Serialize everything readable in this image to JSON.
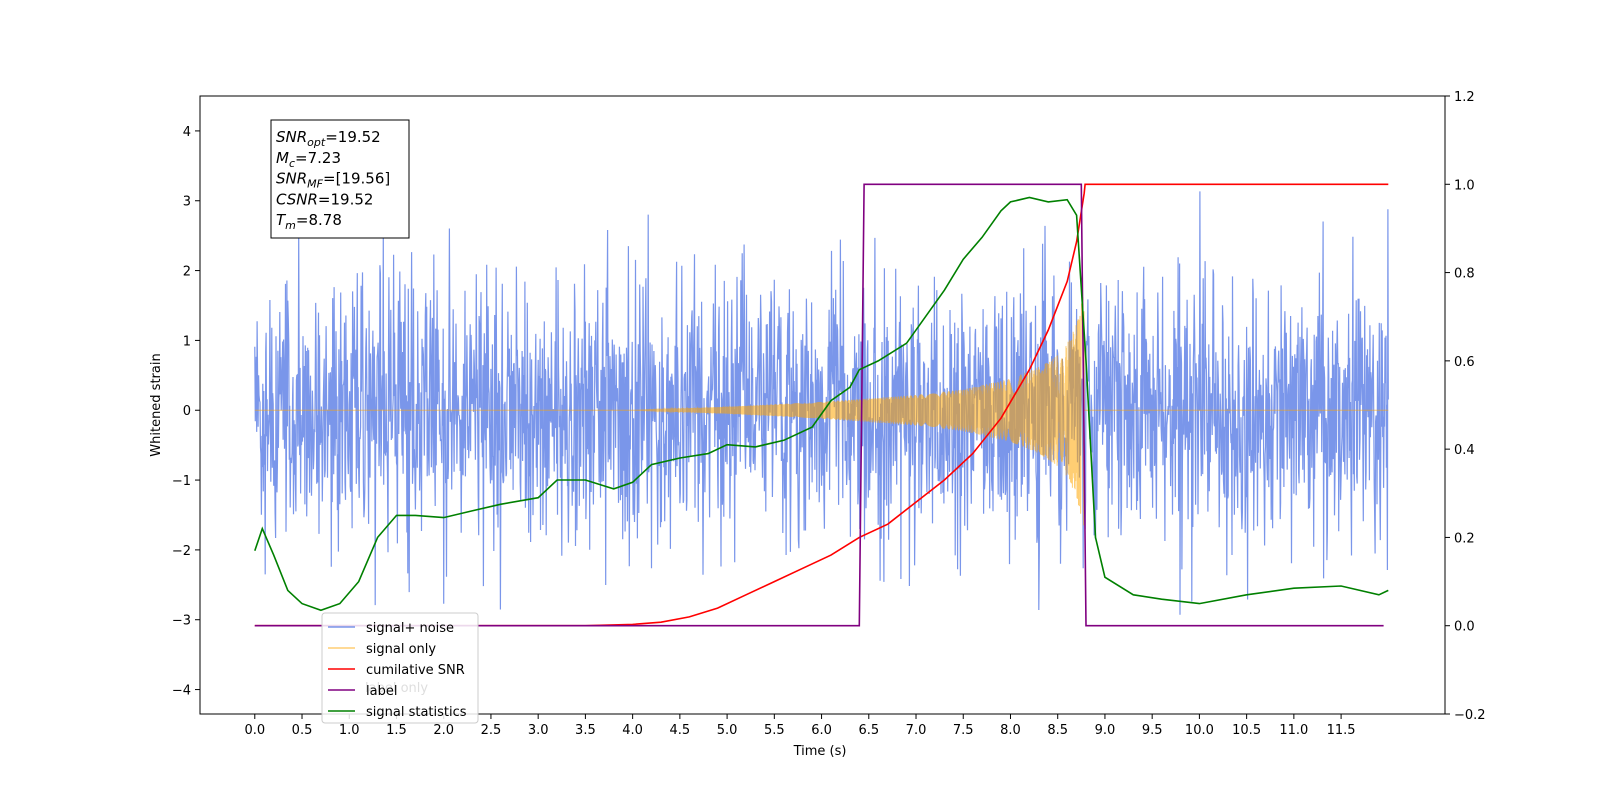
{
  "chart_data": {
    "type": "line",
    "xlabel": "Time (s)",
    "ylabel": "Whitened strain",
    "xlim": [
      -0.58,
      12.6
    ],
    "ylim": [
      -4.35,
      4.5
    ],
    "ylim_right": [
      -0.2,
      1.2
    ],
    "x_ticks": [
      "0.0",
      "0.5",
      "1.0",
      "1.5",
      "2.0",
      "2.5",
      "3.0",
      "3.5",
      "4.0",
      "4.5",
      "5.0",
      "5.5",
      "6.0",
      "6.5",
      "7.0",
      "7.5",
      "8.0",
      "8.5",
      "9.0",
      "9.5",
      "10.0",
      "10.5",
      "11.0",
      "11.5"
    ],
    "y_ticks": [
      "4",
      "3",
      "2",
      "1",
      "0",
      "−1",
      "−2",
      "−3",
      "−4"
    ],
    "y_ticks_right": [
      "1.2",
      "1.0",
      "0.8",
      "0.6",
      "0.4",
      "0.2",
      "0.0",
      "−0.2"
    ],
    "annotation": {
      "lines": [
        {
          "sym": "SNR",
          "sub": "opt",
          "value": "=19.52"
        },
        {
          "sym": "M",
          "sub": "c",
          "value": "=7.23"
        },
        {
          "sym": "SNR",
          "sub": "MF",
          "value": "=[19.56]"
        },
        {
          "sym": "CSNR",
          "sub": "",
          "value": "=19.52"
        },
        {
          "sym": "T",
          "sub": "m",
          "value": "=8.78"
        }
      ]
    },
    "legend": {
      "placement": "lower-left",
      "entries": [
        {
          "label": "signal+ noise",
          "color": "#4169E1"
        },
        {
          "label": "signal only",
          "color": "#FFA500"
        },
        {
          "label": "cumilative SNR",
          "color": "#FF0000"
        },
        {
          "label": "label",
          "color": "#800080"
        },
        {
          "label": "signal statistics",
          "color": "#008000"
        }
      ],
      "hidden_label": "label only"
    },
    "series": [
      {
        "name": "signal+ noise",
        "axis": "left",
        "color": "#4169E1",
        "kind": "noise",
        "x_range": [
          0.0,
          12.0
        ],
        "std": 1.0,
        "min": -3.9,
        "max": 3.7
      },
      {
        "name": "signal only",
        "axis": "left",
        "color": "#FFA500",
        "kind": "chirp",
        "x_range": [
          0.0,
          12.0
        ],
        "t_merge": 8.78,
        "envelope_t": [
          4.0,
          5.0,
          6.0,
          7.0,
          7.5,
          8.0,
          8.3,
          8.5,
          8.6,
          8.7,
          8.78
        ],
        "envelope_amp": [
          0.0,
          0.05,
          0.12,
          0.22,
          0.3,
          0.45,
          0.62,
          0.8,
          0.95,
          1.25,
          1.7
        ]
      },
      {
        "name": "cumilative SNR",
        "axis": "right",
        "color": "#FF0000",
        "x": [
          0.0,
          3.5,
          4.0,
          4.3,
          4.6,
          4.9,
          5.2,
          5.5,
          5.8,
          6.1,
          6.4,
          6.7,
          7.0,
          7.3,
          7.6,
          7.9,
          8.2,
          8.4,
          8.6,
          8.7,
          8.78,
          8.79,
          12.0
        ],
        "y": [
          0.0,
          0.0,
          0.003,
          0.008,
          0.02,
          0.04,
          0.07,
          0.1,
          0.13,
          0.16,
          0.2,
          0.23,
          0.28,
          0.33,
          0.39,
          0.47,
          0.58,
          0.67,
          0.78,
          0.87,
          0.98,
          1.0,
          1.0
        ]
      },
      {
        "name": "label",
        "axis": "right",
        "color": "#800080",
        "x": [
          0.0,
          6.4,
          6.45,
          8.75,
          8.8,
          11.95
        ],
        "y": [
          0.0,
          0.0,
          1.0,
          1.0,
          0.0,
          0.0
        ]
      },
      {
        "name": "signal statistics",
        "axis": "right",
        "color": "#008000",
        "x": [
          0.0,
          0.08,
          0.2,
          0.35,
          0.5,
          0.7,
          0.9,
          1.1,
          1.3,
          1.5,
          1.7,
          2.0,
          2.3,
          2.6,
          3.0,
          3.2,
          3.5,
          3.8,
          4.0,
          4.2,
          4.5,
          4.8,
          5.0,
          5.3,
          5.6,
          5.9,
          6.1,
          6.3,
          6.4,
          6.6,
          6.9,
          7.1,
          7.3,
          7.5,
          7.7,
          7.9,
          8.0,
          8.2,
          8.4,
          8.6,
          8.7,
          8.8,
          8.9,
          9.0,
          9.3,
          9.6,
          10.0,
          10.5,
          11.0,
          11.5,
          11.9,
          12.0
        ],
        "y": [
          0.17,
          0.22,
          0.16,
          0.08,
          0.05,
          0.035,
          0.05,
          0.1,
          0.2,
          0.25,
          0.25,
          0.245,
          0.26,
          0.275,
          0.29,
          0.33,
          0.33,
          0.31,
          0.325,
          0.365,
          0.38,
          0.39,
          0.41,
          0.405,
          0.42,
          0.45,
          0.51,
          0.54,
          0.58,
          0.6,
          0.64,
          0.7,
          0.76,
          0.83,
          0.88,
          0.94,
          0.96,
          0.97,
          0.96,
          0.965,
          0.93,
          0.6,
          0.2,
          0.11,
          0.07,
          0.06,
          0.05,
          0.07,
          0.085,
          0.09,
          0.07,
          0.08
        ]
      }
    ]
  }
}
